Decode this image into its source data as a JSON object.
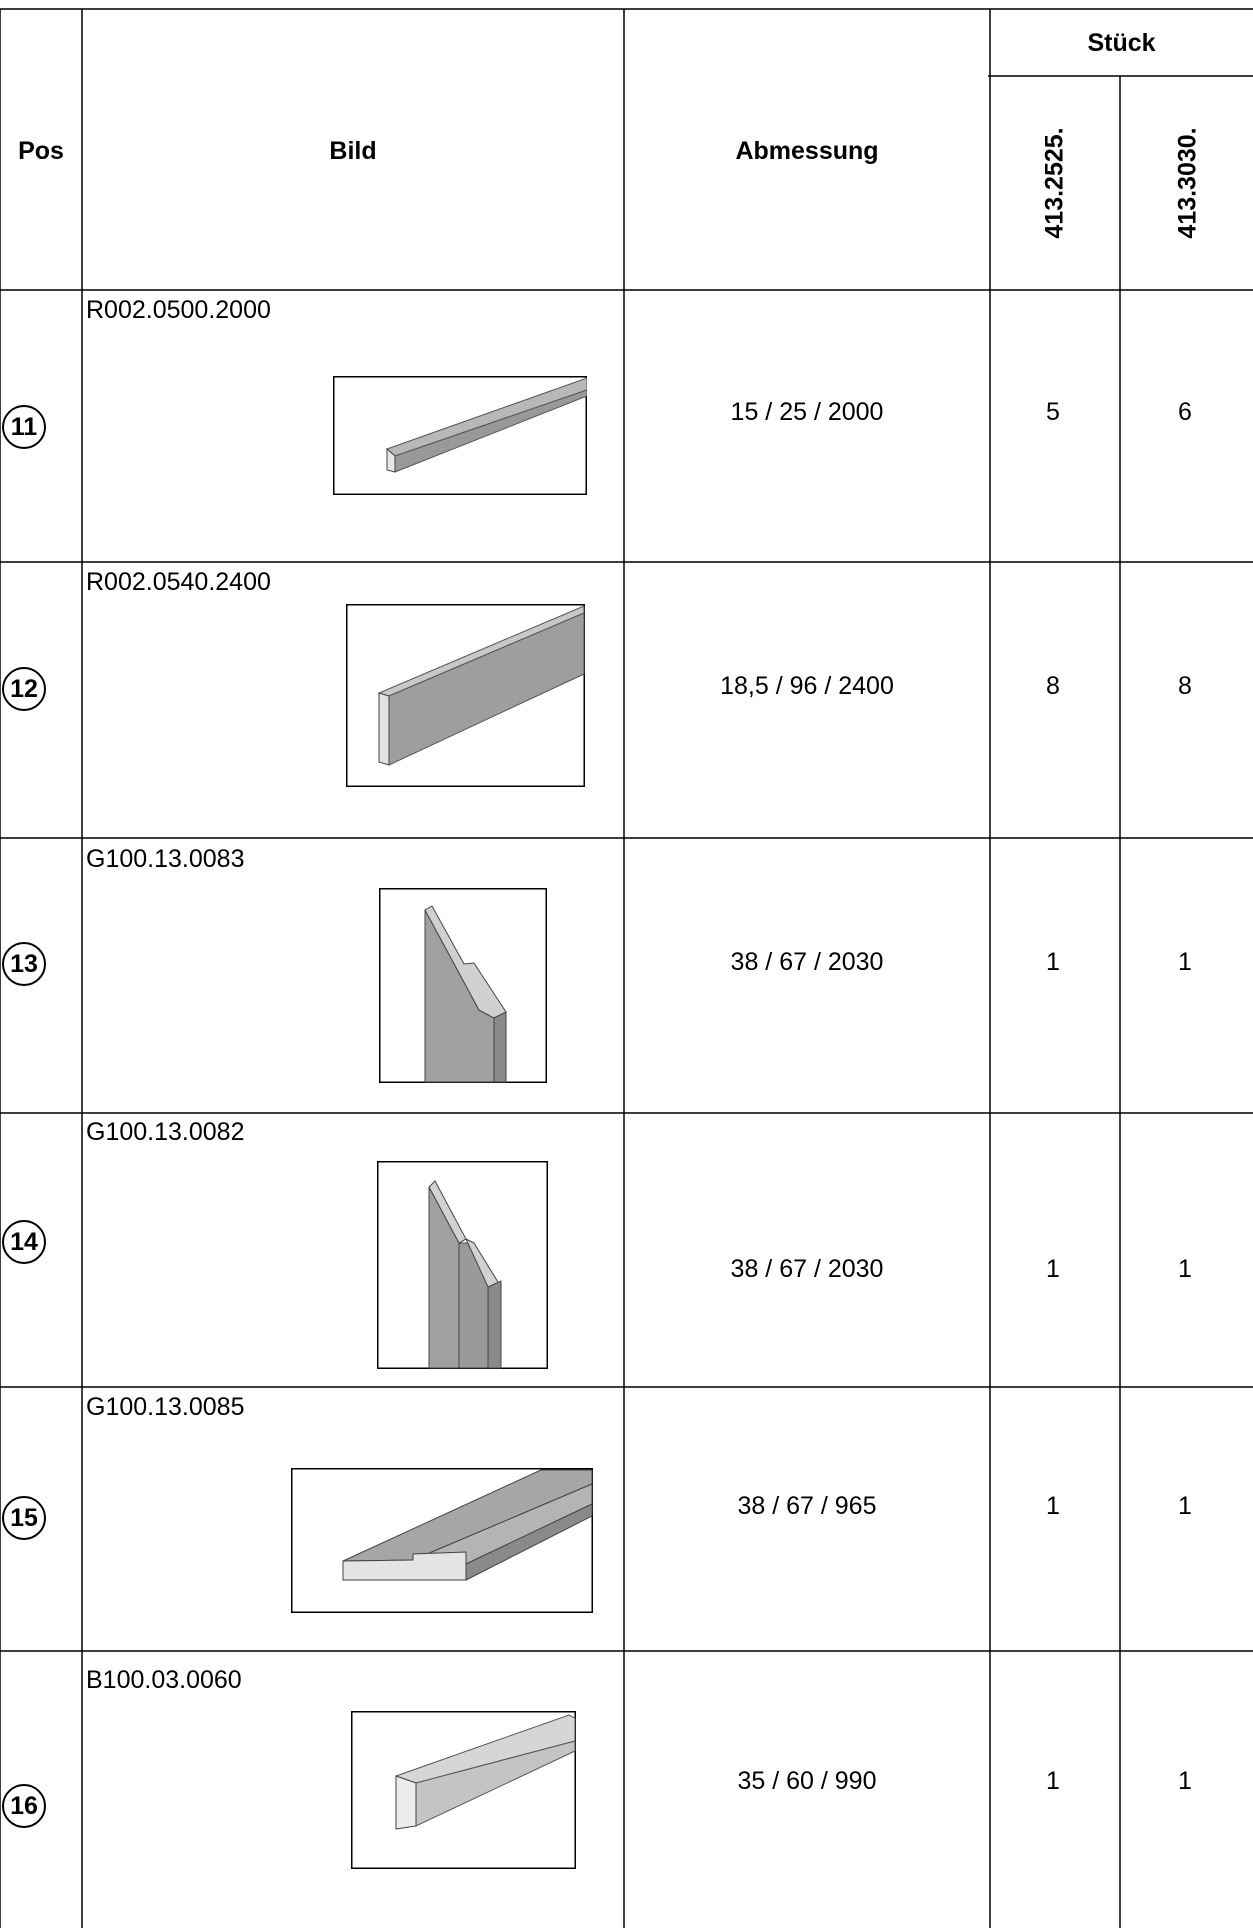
{
  "header": {
    "pos": "Pos",
    "bild": "Bild",
    "abmessung": "Abmessung",
    "stueck": "Stück",
    "variant_a": "413.2525.",
    "variant_b": "413.3030."
  },
  "rows": [
    {
      "pos": "11",
      "code": "R002.0500.2000",
      "dimension": "15 / 25 / 2000",
      "qty_a": "5",
      "qty_b": "6"
    },
    {
      "pos": "12",
      "code": "R002.0540.2400",
      "dimension": "18,5 / 96 / 2400",
      "qty_a": "8",
      "qty_b": "8"
    },
    {
      "pos": "13",
      "code": "G100.13.0083",
      "dimension": "38 / 67 / 2030",
      "qty_a": "1",
      "qty_b": "1"
    },
    {
      "pos": "14",
      "code": "G100.13.0082",
      "dimension": "38 / 67 / 2030",
      "qty_a": "1",
      "qty_b": "1"
    },
    {
      "pos": "15",
      "code": "G100.13.0085",
      "dimension": "38 / 67 / 965",
      "qty_a": "1",
      "qty_b": "1"
    },
    {
      "pos": "16",
      "code": "B100.03.0060",
      "dimension": "35 / 60 / 990",
      "qty_a": "1",
      "qty_b": "1"
    }
  ],
  "colors": {
    "line": "#000000",
    "wood_dark": "#9a9a9a",
    "wood_mid": "#b8b8b8",
    "wood_light": "#e2e2e2"
  }
}
